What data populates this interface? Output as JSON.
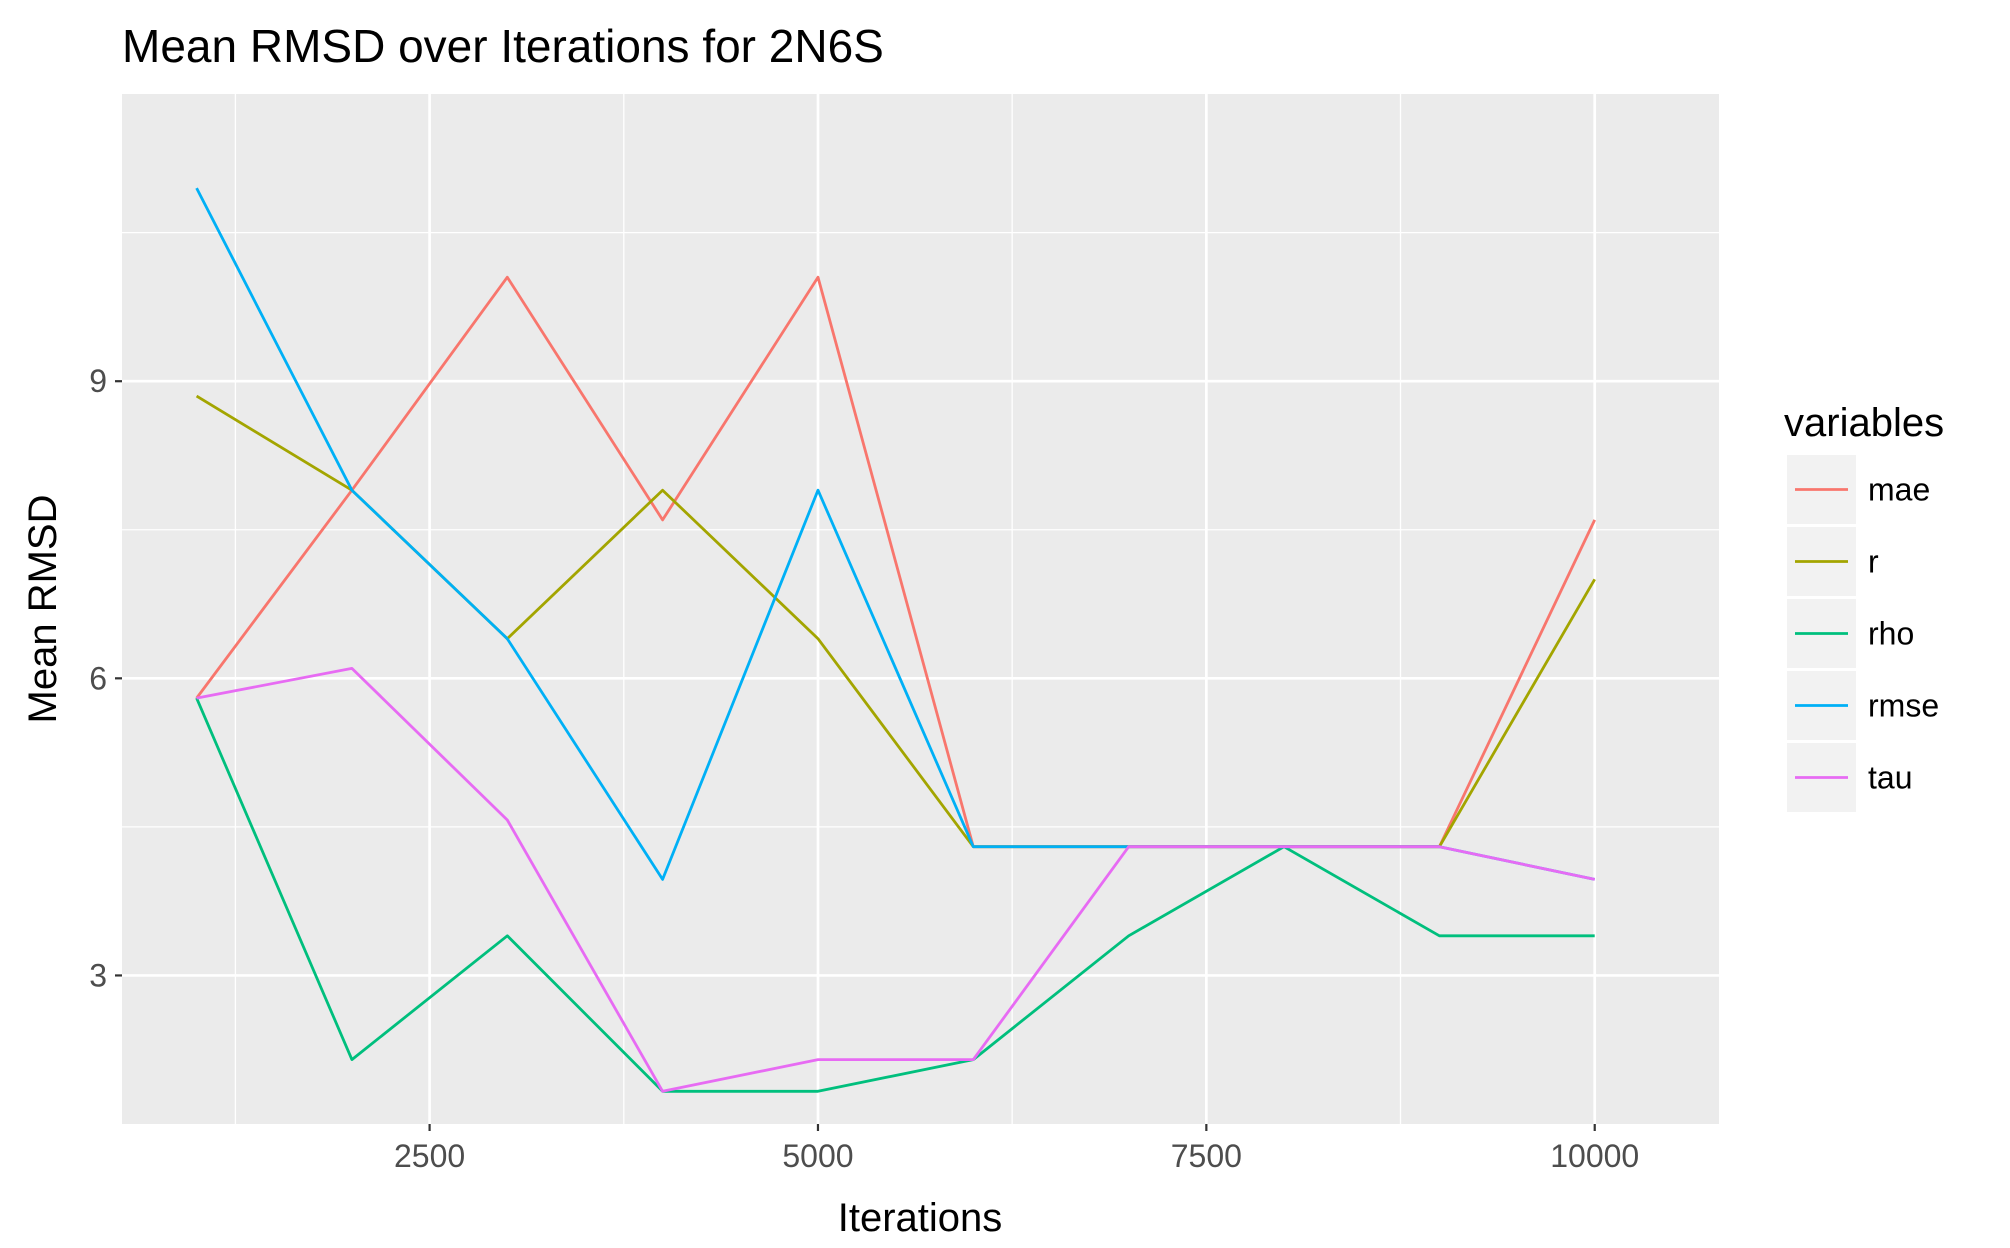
{
  "chart_data": {
    "type": "line",
    "title": "Mean RMSD over Iterations for 2N6S",
    "xlabel": "Iterations",
    "ylabel": "Mean RMSD",
    "xlim": [
      520,
      10800
    ],
    "ylim": [
      1.5,
      11.9
    ],
    "x_ticks": [
      2500,
      5000,
      7500,
      10000
    ],
    "x_tick_labels": [
      "2500",
      "5000",
      "7500",
      "10000"
    ],
    "y_ticks": [
      3,
      6,
      9
    ],
    "y_tick_labels": [
      "3",
      "6",
      "9"
    ],
    "x": [
      1000,
      2000,
      3000,
      4000,
      5000,
      6000,
      7000,
      8000,
      9000,
      10000
    ],
    "legend_title": "variables",
    "legend_position": "right",
    "grid": true,
    "series": [
      {
        "name": "mae",
        "color": "#F8766D",
        "values": [
          5.8,
          7.9,
          10.05,
          7.6,
          10.05,
          4.3,
          4.3,
          4.3,
          4.3,
          7.6
        ]
      },
      {
        "name": "r",
        "color": "#A3A500",
        "values": [
          8.85,
          7.9,
          6.4,
          7.9,
          6.4,
          4.3,
          4.3,
          4.3,
          4.3,
          7.0
        ]
      },
      {
        "name": "rho",
        "color": "#00BF7D",
        "values": [
          5.8,
          2.15,
          3.4,
          1.83,
          1.83,
          2.15,
          3.4,
          4.3,
          3.4,
          3.4
        ]
      },
      {
        "name": "rmse",
        "color": "#00B0F6",
        "values": [
          10.95,
          7.9,
          6.4,
          3.97,
          7.9,
          4.3,
          4.3,
          4.3,
          4.3,
          3.97
        ]
      },
      {
        "name": "tau",
        "color": "#E76BF3",
        "values": [
          5.8,
          6.1,
          4.57,
          1.83,
          2.15,
          2.15,
          4.3,
          4.3,
          4.3,
          3.97
        ]
      }
    ]
  }
}
